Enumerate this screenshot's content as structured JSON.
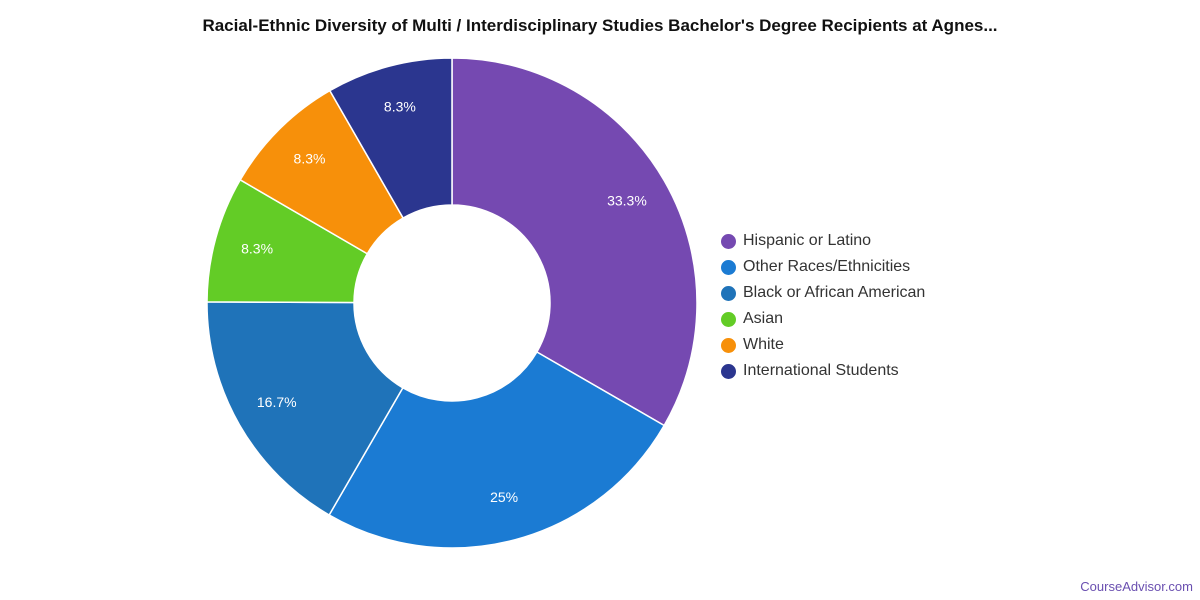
{
  "title": "Racial-Ethnic Diversity of Multi / Interdisciplinary Studies Bachelor's Degree Recipients at Agnes...",
  "footer": "CourseAdvisor.com",
  "chart_data": {
    "type": "pie",
    "donut": true,
    "start": "top",
    "direction": "clockwise",
    "legend_position": "right",
    "series": [
      {
        "name": "Hispanic or Latino",
        "value": 33.3,
        "label": "33.3%",
        "color": "#7549b1"
      },
      {
        "name": "Other Races/Ethnicities",
        "value": 25,
        "label": "25%",
        "color": "#1b7bd3"
      },
      {
        "name": "Black or African American",
        "value": 16.7,
        "label": "16.7%",
        "color": "#1f73b9"
      },
      {
        "name": "Asian",
        "value": 8.3,
        "label": "8.3%",
        "color": "#63cc26"
      },
      {
        "name": "White",
        "value": 8.3,
        "label": "8.3%",
        "color": "#f7900a"
      },
      {
        "name": "International Students",
        "value": 8.3,
        "label": "8.3%",
        "color": "#2b368f"
      }
    ]
  }
}
